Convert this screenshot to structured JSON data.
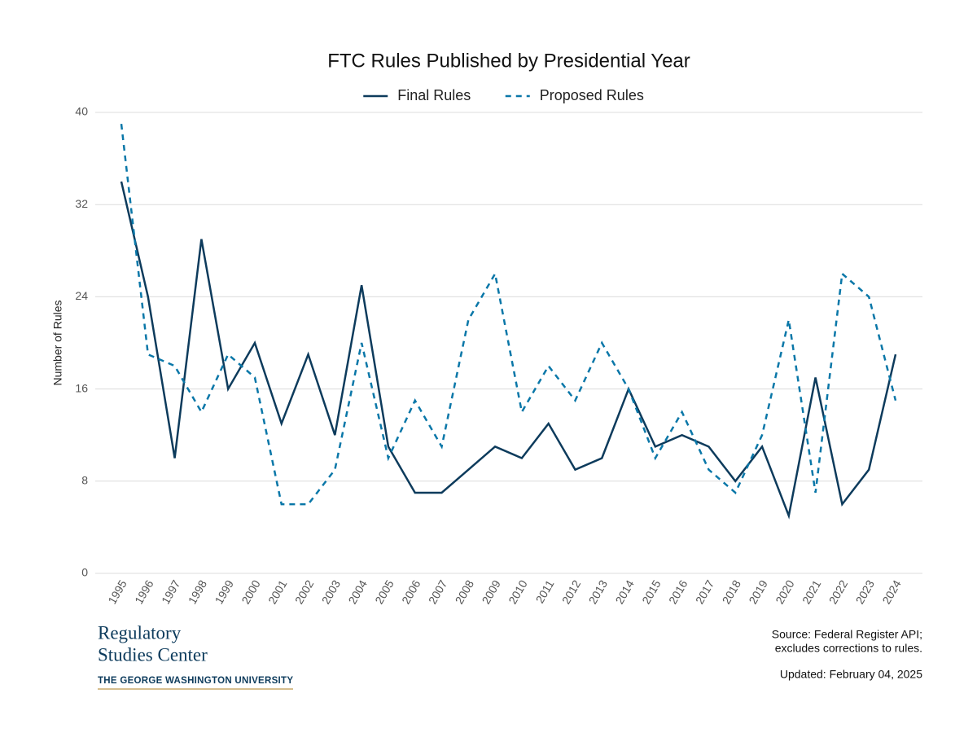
{
  "chart_data": {
    "type": "line",
    "title": "FTC Rules Published by Presidential Year",
    "y_label": "Number of Rules",
    "categories": [
      "1995",
      "1996",
      "1997",
      "1998",
      "1999",
      "2000",
      "2001",
      "2002",
      "2003",
      "2004",
      "2005",
      "2006",
      "2007",
      "2008",
      "2009",
      "2010",
      "2011",
      "2012",
      "2013",
      "2014",
      "2015",
      "2016",
      "2017",
      "2018",
      "2019",
      "2020",
      "2021",
      "2022",
      "2023",
      "2024"
    ],
    "series": [
      {
        "name": "Final Rules",
        "color": "#0d3b5c",
        "linestyle": "solid",
        "values": [
          34,
          24,
          10,
          29,
          16,
          20,
          13,
          19,
          12,
          25,
          11,
          7,
          7,
          9,
          11,
          10,
          13,
          9,
          10,
          16,
          11,
          12,
          11,
          8,
          11,
          5,
          17,
          6,
          9,
          19
        ]
      },
      {
        "name": "Proposed Rules",
        "color": "#0a77a8",
        "linestyle": "dashed",
        "values": [
          39,
          19,
          18,
          14,
          19,
          17,
          6,
          6,
          9,
          20,
          10,
          15,
          11,
          22,
          26,
          14,
          18,
          15,
          20,
          16,
          10,
          14,
          9,
          7,
          12,
          22,
          7,
          26,
          24,
          15
        ]
      }
    ],
    "ylim": [
      0,
      40
    ],
    "yticks": [
      0,
      8,
      16,
      24,
      32,
      40
    ],
    "grid": true,
    "legend": "top",
    "source": [
      "Source: Federal Register API;",
      "excludes corrections to rules."
    ],
    "updated": "Updated: February 04, 2025"
  },
  "branding": {
    "name_lines": [
      "Regulatory",
      "Studies Center"
    ],
    "university": "THE GEORGE WASHINGTON UNIVERSITY"
  }
}
